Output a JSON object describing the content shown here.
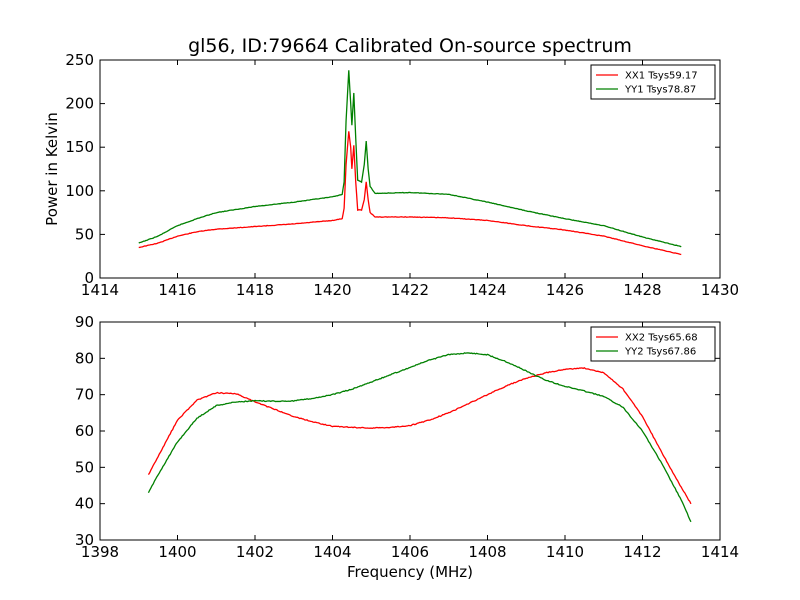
{
  "figure": {
    "title": "gl56, ID:79664 Calibrated On-source spectrum",
    "xlabel": "Frequency (MHz)"
  },
  "chart_data": [
    {
      "type": "line",
      "title": "gl56, ID:79664 Calibrated On-source spectrum",
      "xlabel": "",
      "ylabel": "Power in Kelvin",
      "xlim": [
        1414,
        1430
      ],
      "ylim": [
        0,
        250
      ],
      "xticks": [
        1414,
        1416,
        1418,
        1420,
        1422,
        1424,
        1426,
        1428,
        1430
      ],
      "yticks": [
        0,
        50,
        100,
        150,
        200,
        250
      ],
      "legend_position": "top-right",
      "grid": false,
      "series": [
        {
          "name": "XX1 Tsys59.17",
          "color": "#ff0000",
          "points": [
            [
              1415.0,
              35
            ],
            [
              1415.5,
              40
            ],
            [
              1416.0,
              48
            ],
            [
              1416.5,
              53
            ],
            [
              1417.0,
              56
            ],
            [
              1418.0,
              59
            ],
            [
              1419.0,
              62
            ],
            [
              1419.5,
              64
            ],
            [
              1420.0,
              66
            ],
            [
              1420.25,
              68
            ],
            [
              1420.3,
              80
            ],
            [
              1420.35,
              130
            ],
            [
              1420.42,
              168
            ],
            [
              1420.47,
              150
            ],
            [
              1420.5,
              125
            ],
            [
              1420.55,
              152
            ],
            [
              1420.6,
              110
            ],
            [
              1420.65,
              78
            ],
            [
              1420.75,
              78
            ],
            [
              1420.82,
              90
            ],
            [
              1420.87,
              110
            ],
            [
              1420.92,
              90
            ],
            [
              1420.97,
              75
            ],
            [
              1421.1,
              70
            ],
            [
              1422.0,
              70
            ],
            [
              1423.0,
              69
            ],
            [
              1424.0,
              66
            ],
            [
              1425.0,
              60
            ],
            [
              1426.0,
              55
            ],
            [
              1427.0,
              48
            ],
            [
              1428.0,
              37
            ],
            [
              1429.0,
              27
            ]
          ]
        },
        {
          "name": "YY1 Tsys78.87",
          "color": "#008000",
          "points": [
            [
              1415.0,
              40
            ],
            [
              1415.5,
              48
            ],
            [
              1416.0,
              60
            ],
            [
              1416.5,
              68
            ],
            [
              1417.0,
              75
            ],
            [
              1418.0,
              82
            ],
            [
              1419.0,
              87
            ],
            [
              1419.5,
              90
            ],
            [
              1420.0,
              93
            ],
            [
              1420.25,
              96
            ],
            [
              1420.3,
              110
            ],
            [
              1420.35,
              180
            ],
            [
              1420.42,
              238
            ],
            [
              1420.47,
              200
            ],
            [
              1420.5,
              175
            ],
            [
              1420.55,
              212
            ],
            [
              1420.6,
              160
            ],
            [
              1420.65,
              112
            ],
            [
              1420.75,
              110
            ],
            [
              1420.82,
              130
            ],
            [
              1420.87,
              157
            ],
            [
              1420.92,
              125
            ],
            [
              1420.97,
              105
            ],
            [
              1421.1,
              97
            ],
            [
              1422.0,
              98
            ],
            [
              1423.0,
              96
            ],
            [
              1424.0,
              87
            ],
            [
              1425.0,
              77
            ],
            [
              1426.0,
              68
            ],
            [
              1427.0,
              60
            ],
            [
              1428.0,
              47
            ],
            [
              1429.0,
              36
            ]
          ]
        }
      ]
    },
    {
      "type": "line",
      "title": "",
      "xlabel": "Frequency (MHz)",
      "ylabel": "",
      "xlim": [
        1398,
        1414
      ],
      "ylim": [
        30,
        90
      ],
      "xticks": [
        1398,
        1400,
        1402,
        1404,
        1406,
        1408,
        1410,
        1412,
        1414
      ],
      "yticks": [
        30,
        40,
        50,
        60,
        70,
        80,
        90
      ],
      "legend_position": "top-right",
      "grid": false,
      "series": [
        {
          "name": "XX2 Tsys65.68",
          "color": "#ff0000",
          "points": [
            [
              1399.25,
              48
            ],
            [
              1399.5,
              53
            ],
            [
              1400.0,
              63
            ],
            [
              1400.5,
              68.5
            ],
            [
              1401.0,
              70.5
            ],
            [
              1401.5,
              70.3
            ],
            [
              1402.0,
              68
            ],
            [
              1402.5,
              66
            ],
            [
              1403.0,
              64
            ],
            [
              1403.5,
              62.5
            ],
            [
              1404.0,
              61.3
            ],
            [
              1404.5,
              61
            ],
            [
              1405.0,
              60.8
            ],
            [
              1405.5,
              61
            ],
            [
              1406.0,
              61.5
            ],
            [
              1406.5,
              63
            ],
            [
              1407.0,
              65
            ],
            [
              1407.5,
              67.5
            ],
            [
              1408.0,
              70
            ],
            [
              1408.5,
              72.5
            ],
            [
              1409.0,
              74.5
            ],
            [
              1409.5,
              76
            ],
            [
              1410.0,
              77
            ],
            [
              1410.5,
              77.3
            ],
            [
              1411.0,
              76
            ],
            [
              1411.5,
              71.5
            ],
            [
              1412.0,
              64
            ],
            [
              1412.5,
              54
            ],
            [
              1413.0,
              44.5
            ],
            [
              1413.25,
              40
            ]
          ]
        },
        {
          "name": "YY2 Tsys67.86",
          "color": "#008000",
          "points": [
            [
              1399.25,
              43
            ],
            [
              1399.5,
              48
            ],
            [
              1400.0,
              57
            ],
            [
              1400.5,
              63.5
            ],
            [
              1401.0,
              67
            ],
            [
              1401.5,
              68
            ],
            [
              1402.0,
              68.3
            ],
            [
              1402.5,
              68.2
            ],
            [
              1403.0,
              68.3
            ],
            [
              1403.5,
              69
            ],
            [
              1404.0,
              70
            ],
            [
              1404.5,
              71.5
            ],
            [
              1405.0,
              73.5
            ],
            [
              1405.5,
              75.5
            ],
            [
              1406.0,
              77.5
            ],
            [
              1406.5,
              79.5
            ],
            [
              1407.0,
              81
            ],
            [
              1407.5,
              81.5
            ],
            [
              1408.0,
              81
            ],
            [
              1408.5,
              79
            ],
            [
              1409.0,
              76.5
            ],
            [
              1409.5,
              74
            ],
            [
              1410.0,
              72.3
            ],
            [
              1410.5,
              71
            ],
            [
              1411.0,
              69.5
            ],
            [
              1411.5,
              66.5
            ],
            [
              1412.0,
              60
            ],
            [
              1412.5,
              51
            ],
            [
              1413.0,
              41
            ],
            [
              1413.25,
              35
            ]
          ]
        }
      ]
    }
  ]
}
